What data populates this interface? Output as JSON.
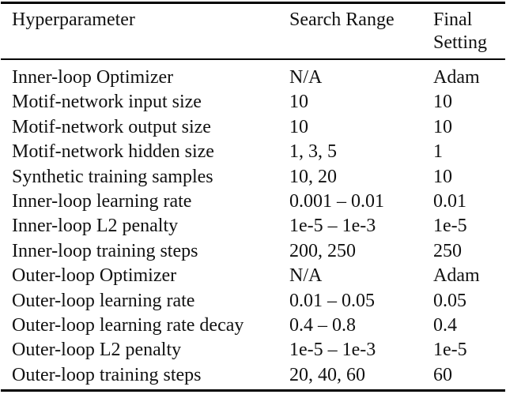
{
  "colors": {
    "background": "#ffffff",
    "text": "#111111",
    "rule": "#000000"
  },
  "table": {
    "header": {
      "hyperparameter": "Hyperparameter",
      "search_range": "Search Range",
      "final_setting": "Final Setting"
    },
    "rows": [
      {
        "hyperparameter": "Inner-loop Optimizer",
        "search_range": "N/A",
        "final_setting": "Adam"
      },
      {
        "hyperparameter": "Motif-network input size",
        "search_range": "10",
        "final_setting": "10"
      },
      {
        "hyperparameter": "Motif-network output size",
        "search_range": "10",
        "final_setting": "10"
      },
      {
        "hyperparameter": "Motif-network hidden size",
        "search_range": "1, 3, 5",
        "final_setting": "1"
      },
      {
        "hyperparameter": "Synthetic training samples",
        "search_range": "10, 20",
        "final_setting": "10"
      },
      {
        "hyperparameter": "Inner-loop learning rate",
        "search_range": "0.001 – 0.01",
        "final_setting": "0.01"
      },
      {
        "hyperparameter": "Inner-loop L2 penalty",
        "search_range": "1e-5 – 1e-3",
        "final_setting": "1e-5"
      },
      {
        "hyperparameter": "Inner-loop training steps",
        "search_range": "200, 250",
        "final_setting": "250"
      },
      {
        "hyperparameter": "Outer-loop Optimizer",
        "search_range": "N/A",
        "final_setting": "Adam"
      },
      {
        "hyperparameter": "Outer-loop learning rate",
        "search_range": "0.01 – 0.05",
        "final_setting": "0.05"
      },
      {
        "hyperparameter": "Outer-loop learning rate decay",
        "search_range": "0.4 – 0.8",
        "final_setting": "0.4"
      },
      {
        "hyperparameter": "Outer-loop L2 penalty",
        "search_range": "1e-5 – 1e-3",
        "final_setting": "1e-5"
      },
      {
        "hyperparameter": "Outer-loop training steps",
        "search_range": "20, 40, 60",
        "final_setting": "60"
      }
    ]
  }
}
